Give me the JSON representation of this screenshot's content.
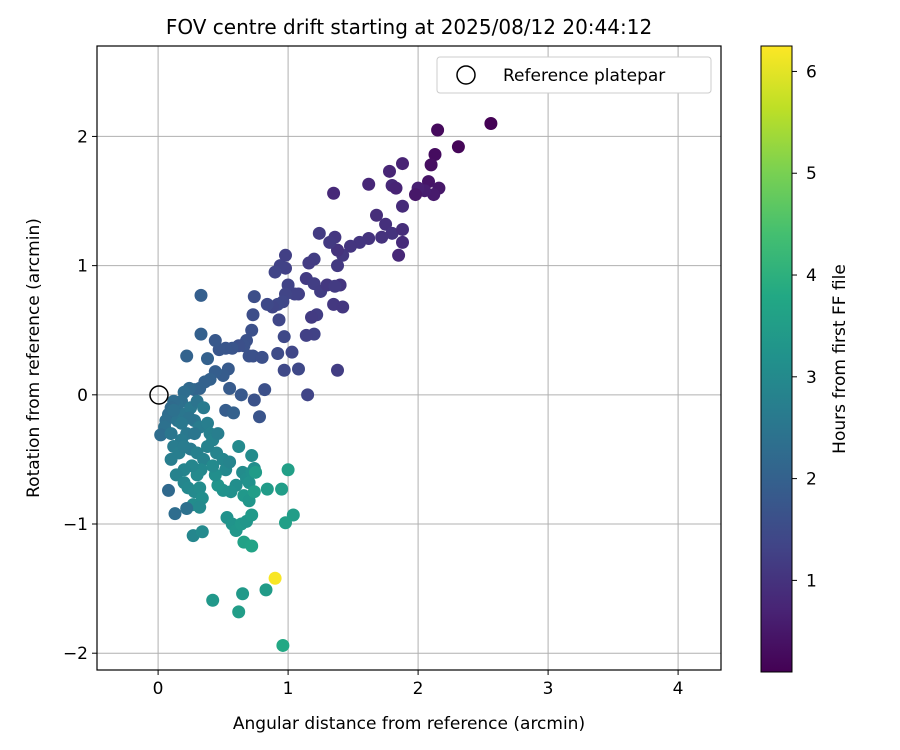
{
  "chart_data": {
    "type": "scatter",
    "title": "FOV centre drift starting at 2025/08/12 20:44:12",
    "xlabel": "Angular distance from reference (arcmin)",
    "ylabel": "Rotation from reference (arcmin)",
    "xlim": [
      -0.47,
      4.33
    ],
    "ylim": [
      -2.13,
      2.7
    ],
    "xticks": [
      0,
      1,
      2,
      3,
      4
    ],
    "yticks": [
      -2,
      -1,
      0,
      1,
      2
    ],
    "grid": true,
    "legend": {
      "placement": "top-right",
      "entries": [
        "Reference platepar"
      ]
    },
    "reference_point": {
      "x": 0,
      "y": 0
    },
    "colorbar": {
      "label": "Hours from first FF file",
      "colormap": "viridis",
      "range": [
        0.1,
        6.25
      ],
      "ticks": [
        1,
        2,
        3,
        4,
        5,
        6
      ]
    },
    "points": [
      {
        "x": 2.56,
        "y": 2.1,
        "c": 0.12
      },
      {
        "x": 2.31,
        "y": 1.92,
        "c": 0.18
      },
      {
        "x": 2.15,
        "y": 2.05,
        "c": 0.25
      },
      {
        "x": 2.13,
        "y": 1.86,
        "c": 0.3
      },
      {
        "x": 2.1,
        "y": 1.78,
        "c": 0.35
      },
      {
        "x": 2.08,
        "y": 1.65,
        "c": 0.45
      },
      {
        "x": 2.16,
        "y": 1.6,
        "c": 0.5
      },
      {
        "x": 2.12,
        "y": 1.55,
        "c": 0.55
      },
      {
        "x": 2.05,
        "y": 1.58,
        "c": 0.6
      },
      {
        "x": 2.0,
        "y": 1.6,
        "c": 0.65
      },
      {
        "x": 1.98,
        "y": 1.55,
        "c": 0.5
      },
      {
        "x": 1.88,
        "y": 1.79,
        "c": 0.7
      },
      {
        "x": 1.78,
        "y": 1.73,
        "c": 0.75
      },
      {
        "x": 1.8,
        "y": 1.62,
        "c": 0.8
      },
      {
        "x": 1.83,
        "y": 1.6,
        "c": 0.72
      },
      {
        "x": 1.88,
        "y": 1.46,
        "c": 0.85
      },
      {
        "x": 1.68,
        "y": 1.39,
        "c": 0.9
      },
      {
        "x": 1.62,
        "y": 1.63,
        "c": 0.78
      },
      {
        "x": 1.35,
        "y": 1.56,
        "c": 0.82
      },
      {
        "x": 1.75,
        "y": 1.32,
        "c": 0.95
      },
      {
        "x": 1.8,
        "y": 1.25,
        "c": 1.0
      },
      {
        "x": 1.88,
        "y": 1.28,
        "c": 0.9
      },
      {
        "x": 1.88,
        "y": 1.18,
        "c": 0.85
      },
      {
        "x": 1.85,
        "y": 1.08,
        "c": 0.8
      },
      {
        "x": 1.72,
        "y": 1.22,
        "c": 1.0
      },
      {
        "x": 1.62,
        "y": 1.21,
        "c": 1.02
      },
      {
        "x": 1.55,
        "y": 1.18,
        "c": 1.05
      },
      {
        "x": 1.48,
        "y": 1.15,
        "c": 1.05
      },
      {
        "x": 1.42,
        "y": 1.08,
        "c": 1.1
      },
      {
        "x": 1.38,
        "y": 1.12,
        "c": 1.0
      },
      {
        "x": 1.36,
        "y": 1.22,
        "c": 1.08
      },
      {
        "x": 1.32,
        "y": 1.18,
        "c": 1.12
      },
      {
        "x": 1.24,
        "y": 1.25,
        "c": 1.15
      },
      {
        "x": 1.2,
        "y": 1.05,
        "c": 1.2
      },
      {
        "x": 1.16,
        "y": 1.02,
        "c": 1.18
      },
      {
        "x": 1.14,
        "y": 0.9,
        "c": 1.15
      },
      {
        "x": 1.2,
        "y": 0.86,
        "c": 1.22
      },
      {
        "x": 1.25,
        "y": 0.8,
        "c": 1.2
      },
      {
        "x": 1.3,
        "y": 0.85,
        "c": 1.1
      },
      {
        "x": 1.38,
        "y": 1.0,
        "c": 1.12
      },
      {
        "x": 1.4,
        "y": 0.85,
        "c": 1.05
      },
      {
        "x": 1.36,
        "y": 0.84,
        "c": 1.15
      },
      {
        "x": 1.35,
        "y": 0.7,
        "c": 1.1
      },
      {
        "x": 1.42,
        "y": 0.68,
        "c": 1.08
      },
      {
        "x": 1.22,
        "y": 0.62,
        "c": 1.2
      },
      {
        "x": 1.18,
        "y": 0.6,
        "c": 1.15
      },
      {
        "x": 1.2,
        "y": 0.47,
        "c": 1.3
      },
      {
        "x": 1.14,
        "y": 0.46,
        "c": 1.28
      },
      {
        "x": 1.08,
        "y": 0.78,
        "c": 1.25
      },
      {
        "x": 1.05,
        "y": 0.78,
        "c": 1.3
      },
      {
        "x": 1.0,
        "y": 0.85,
        "c": 1.32
      },
      {
        "x": 0.98,
        "y": 0.78,
        "c": 1.35
      },
      {
        "x": 0.96,
        "y": 0.72,
        "c": 1.4
      },
      {
        "x": 0.92,
        "y": 0.7,
        "c": 1.42
      },
      {
        "x": 0.88,
        "y": 0.68,
        "c": 1.38
      },
      {
        "x": 0.84,
        "y": 0.7,
        "c": 1.45
      },
      {
        "x": 0.74,
        "y": 0.76,
        "c": 1.55
      },
      {
        "x": 0.98,
        "y": 0.98,
        "c": 1.28
      },
      {
        "x": 0.94,
        "y": 1.0,
        "c": 1.3
      },
      {
        "x": 0.9,
        "y": 0.95,
        "c": 1.35
      },
      {
        "x": 0.98,
        "y": 1.08,
        "c": 1.25
      },
      {
        "x": 0.93,
        "y": 0.58,
        "c": 1.4
      },
      {
        "x": 0.97,
        "y": 0.45,
        "c": 1.45
      },
      {
        "x": 0.73,
        "y": 0.62,
        "c": 1.55
      },
      {
        "x": 0.72,
        "y": 0.5,
        "c": 1.6
      },
      {
        "x": 0.68,
        "y": 0.42,
        "c": 1.62
      },
      {
        "x": 0.66,
        "y": 0.38,
        "c": 1.65
      },
      {
        "x": 0.62,
        "y": 0.38,
        "c": 1.6
      },
      {
        "x": 0.57,
        "y": 0.36,
        "c": 1.7
      },
      {
        "x": 0.52,
        "y": 0.36,
        "c": 1.72
      },
      {
        "x": 0.47,
        "y": 0.35,
        "c": 1.75
      },
      {
        "x": 0.44,
        "y": 0.42,
        "c": 1.78
      },
      {
        "x": 0.7,
        "y": 0.3,
        "c": 1.65
      },
      {
        "x": 0.73,
        "y": 0.3,
        "c": 1.62
      },
      {
        "x": 0.8,
        "y": 0.29,
        "c": 1.6
      },
      {
        "x": 0.92,
        "y": 0.32,
        "c": 1.48
      },
      {
        "x": 1.03,
        "y": 0.33,
        "c": 1.4
      },
      {
        "x": 1.08,
        "y": 0.2,
        "c": 1.42
      },
      {
        "x": 0.97,
        "y": 0.19,
        "c": 1.45
      },
      {
        "x": 1.38,
        "y": 0.19,
        "c": 1.2
      },
      {
        "x": 1.15,
        "y": 0.0,
        "c": 1.35
      },
      {
        "x": 0.82,
        "y": 0.04,
        "c": 1.6
      },
      {
        "x": 0.74,
        "y": -0.04,
        "c": 1.65
      },
      {
        "x": 0.78,
        "y": -0.17,
        "c": 1.7
      },
      {
        "x": 0.64,
        "y": 0.0,
        "c": 1.8
      },
      {
        "x": 0.55,
        "y": 0.05,
        "c": 1.85
      },
      {
        "x": 0.52,
        "y": -0.12,
        "c": 1.9
      },
      {
        "x": 0.54,
        "y": 0.2,
        "c": 1.82
      },
      {
        "x": 0.5,
        "y": 0.15,
        "c": 1.88
      },
      {
        "x": 0.44,
        "y": 0.18,
        "c": 1.92
      },
      {
        "x": 0.33,
        "y": 0.77,
        "c": 1.95
      },
      {
        "x": 0.33,
        "y": 0.47,
        "c": 1.98
      },
      {
        "x": 0.38,
        "y": 0.28,
        "c": 2.0
      },
      {
        "x": 0.22,
        "y": 0.3,
        "c": 2.05
      },
      {
        "x": 0.4,
        "y": 0.12,
        "c": 2.0
      },
      {
        "x": 0.36,
        "y": 0.1,
        "c": 2.02
      },
      {
        "x": 0.32,
        "y": 0.05,
        "c": 2.05
      },
      {
        "x": 0.28,
        "y": 0.04,
        "c": 2.1
      },
      {
        "x": 0.24,
        "y": 0.05,
        "c": 2.2
      },
      {
        "x": 0.2,
        "y": 0.02,
        "c": 2.3
      },
      {
        "x": 0.18,
        "y": -0.05,
        "c": 2.35
      },
      {
        "x": 0.15,
        "y": -0.08,
        "c": 2.4
      },
      {
        "x": 0.12,
        "y": -0.05,
        "c": 2.3
      },
      {
        "x": 0.1,
        "y": -0.1,
        "c": 2.25
      },
      {
        "x": 0.08,
        "y": -0.15,
        "c": 2.3
      },
      {
        "x": 0.06,
        "y": -0.2,
        "c": 2.35
      },
      {
        "x": 0.05,
        "y": -0.25,
        "c": 2.4
      },
      {
        "x": 0.02,
        "y": -0.31,
        "c": 2.3
      },
      {
        "x": 0.15,
        "y": -0.2,
        "c": 2.45
      },
      {
        "x": 0.2,
        "y": -0.15,
        "c": 2.5
      },
      {
        "x": 0.25,
        "y": -0.1,
        "c": 2.55
      },
      {
        "x": 0.28,
        "y": -0.2,
        "c": 2.5
      },
      {
        "x": 0.3,
        "y": -0.05,
        "c": 2.45
      },
      {
        "x": 0.35,
        "y": -0.1,
        "c": 2.6
      },
      {
        "x": 0.32,
        "y": -0.25,
        "c": 2.65
      },
      {
        "x": 0.38,
        "y": -0.22,
        "c": 2.7
      },
      {
        "x": 0.4,
        "y": -0.3,
        "c": 2.75
      },
      {
        "x": 0.42,
        "y": -0.35,
        "c": 2.8
      },
      {
        "x": 0.22,
        "y": -0.3,
        "c": 2.55
      },
      {
        "x": 0.18,
        "y": -0.35,
        "c": 2.6
      },
      {
        "x": 0.12,
        "y": -0.4,
        "c": 2.65
      },
      {
        "x": 0.16,
        "y": -0.45,
        "c": 2.7
      },
      {
        "x": 0.25,
        "y": -0.42,
        "c": 2.6
      },
      {
        "x": 0.3,
        "y": -0.45,
        "c": 2.75
      },
      {
        "x": 0.35,
        "y": -0.5,
        "c": 2.8
      },
      {
        "x": 0.45,
        "y": -0.45,
        "c": 2.85
      },
      {
        "x": 0.5,
        "y": -0.5,
        "c": 2.9
      },
      {
        "x": 0.52,
        "y": -0.58,
        "c": 2.95
      },
      {
        "x": 0.55,
        "y": -0.52,
        "c": 2.85
      },
      {
        "x": 0.62,
        "y": -0.4,
        "c": 3.0
      },
      {
        "x": 0.65,
        "y": -0.6,
        "c": 3.05
      },
      {
        "x": 0.68,
        "y": -0.65,
        "c": 3.1
      },
      {
        "x": 0.72,
        "y": -0.47,
        "c": 3.05
      },
      {
        "x": 0.74,
        "y": -0.57,
        "c": 3.1
      },
      {
        "x": 0.72,
        "y": -0.6,
        "c": 3.15
      },
      {
        "x": 0.7,
        "y": -0.68,
        "c": 3.2
      },
      {
        "x": 0.6,
        "y": -0.7,
        "c": 3.1
      },
      {
        "x": 0.56,
        "y": -0.75,
        "c": 3.15
      },
      {
        "x": 0.5,
        "y": -0.74,
        "c": 3.2
      },
      {
        "x": 0.46,
        "y": -0.7,
        "c": 3.25
      },
      {
        "x": 0.44,
        "y": -0.62,
        "c": 3.1
      },
      {
        "x": 0.42,
        "y": -0.55,
        "c": 3.0
      },
      {
        "x": 0.33,
        "y": -0.58,
        "c": 2.95
      },
      {
        "x": 0.3,
        "y": -0.62,
        "c": 3.0
      },
      {
        "x": 0.26,
        "y": -0.55,
        "c": 2.9
      },
      {
        "x": 0.2,
        "y": -0.58,
        "c": 2.85
      },
      {
        "x": 0.14,
        "y": -0.62,
        "c": 2.8
      },
      {
        "x": 0.1,
        "y": -0.5,
        "c": 2.7
      },
      {
        "x": 0.2,
        "y": -0.68,
        "c": 2.9
      },
      {
        "x": 0.23,
        "y": -0.72,
        "c": 2.95
      },
      {
        "x": 0.28,
        "y": -0.75,
        "c": 3.0
      },
      {
        "x": 0.32,
        "y": -0.72,
        "c": 3.05
      },
      {
        "x": 0.34,
        "y": -0.8,
        "c": 3.1
      },
      {
        "x": 0.27,
        "y": -0.85,
        "c": 3.05
      },
      {
        "x": 0.32,
        "y": -0.87,
        "c": 3.0
      },
      {
        "x": 0.08,
        "y": -0.74,
        "c": 2.2
      },
      {
        "x": 0.13,
        "y": -0.92,
        "c": 2.3
      },
      {
        "x": 0.22,
        "y": -0.88,
        "c": 2.4
      },
      {
        "x": 0.27,
        "y": -1.09,
        "c": 2.9
      },
      {
        "x": 0.34,
        "y": -1.06,
        "c": 3.0
      },
      {
        "x": 0.53,
        "y": -0.95,
        "c": 3.2
      },
      {
        "x": 0.57,
        "y": -1.0,
        "c": 3.25
      },
      {
        "x": 0.6,
        "y": -1.05,
        "c": 3.3
      },
      {
        "x": 0.64,
        "y": -1.0,
        "c": 3.35
      },
      {
        "x": 0.68,
        "y": -0.98,
        "c": 3.3
      },
      {
        "x": 0.72,
        "y": -0.93,
        "c": 3.4
      },
      {
        "x": 0.66,
        "y": -0.78,
        "c": 3.35
      },
      {
        "x": 0.7,
        "y": -0.82,
        "c": 3.3
      },
      {
        "x": 0.75,
        "y": -0.6,
        "c": 3.45
      },
      {
        "x": 0.74,
        "y": -0.75,
        "c": 3.5
      },
      {
        "x": 0.84,
        "y": -0.73,
        "c": 3.45
      },
      {
        "x": 0.95,
        "y": -0.73,
        "c": 3.5
      },
      {
        "x": 1.0,
        "y": -0.58,
        "c": 3.55
      },
      {
        "x": 1.04,
        "y": -0.93,
        "c": 3.5
      },
      {
        "x": 0.98,
        "y": -0.99,
        "c": 3.55
      },
      {
        "x": 0.66,
        "y": -1.14,
        "c": 3.6
      },
      {
        "x": 0.72,
        "y": -1.17,
        "c": 3.65
      },
      {
        "x": 0.42,
        "y": -1.59,
        "c": 3.35
      },
      {
        "x": 0.65,
        "y": -1.54,
        "c": 3.4
      },
      {
        "x": 0.62,
        "y": -1.68,
        "c": 3.5
      },
      {
        "x": 0.83,
        "y": -1.51,
        "c": 3.45
      },
      {
        "x": 0.96,
        "y": -1.94,
        "c": 3.8
      },
      {
        "x": 0.9,
        "y": -1.42,
        "c": 6.2
      },
      {
        "x": 0.28,
        "y": -0.3,
        "c": 2.5
      },
      {
        "x": 0.24,
        "y": -0.18,
        "c": 2.45
      },
      {
        "x": 0.18,
        "y": -0.22,
        "c": 2.55
      },
      {
        "x": 0.12,
        "y": -0.12,
        "c": 2.4
      },
      {
        "x": 0.1,
        "y": -0.3,
        "c": 2.5
      },
      {
        "x": 0.2,
        "y": -0.4,
        "c": 2.65
      },
      {
        "x": 0.38,
        "y": -0.4,
        "c": 2.8
      },
      {
        "x": 0.46,
        "y": -0.3,
        "c": 2.7
      },
      {
        "x": 0.58,
        "y": -0.14,
        "c": 2.0
      }
    ]
  }
}
